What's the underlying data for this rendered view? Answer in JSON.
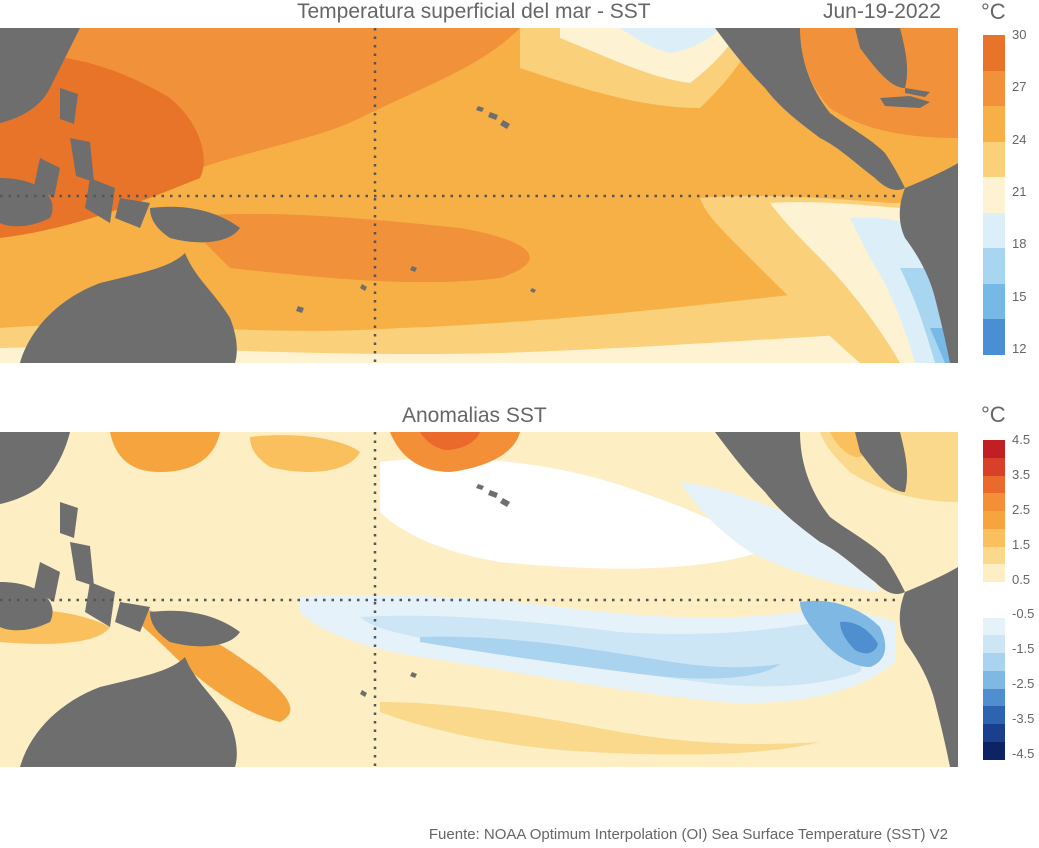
{
  "top": {
    "title": "Temperatura superficial del mar - SST",
    "date": "Jun-19-2022",
    "unit": "°C",
    "colorbar": {
      "colors": [
        "#e8742a",
        "#f1913a",
        "#f7b045",
        "#fbd07a",
        "#fdf2d2",
        "#dceff8",
        "#a8d6f0",
        "#76b9e6",
        "#4a8fd4"
      ],
      "ticks": [
        "30",
        "27",
        "24",
        "21",
        "18",
        "15",
        "12"
      ]
    }
  },
  "bottom": {
    "title": "Anomalias SST",
    "unit": "°C",
    "colorbar": {
      "colors": [
        "#c21f24",
        "#d8402a",
        "#ea6a2c",
        "#f39037",
        "#f6a43d",
        "#f9c05d",
        "#fbd98c",
        "#fdeec4",
        "#ffffff",
        "#ffffff",
        "#e6f2fa",
        "#cce6f5",
        "#a9d3ef",
        "#7fb9e3",
        "#4f8fcf",
        "#2d64b2",
        "#1a3f8c",
        "#0d2464"
      ],
      "ticks": [
        "4.5",
        "3.5",
        "2.5",
        "1.5",
        "0.5",
        "-0.5",
        "-1.5",
        "-2.5",
        "-3.5",
        "-4.5"
      ]
    }
  },
  "source": "Fuente: NOAA Optimum Interpolation (OI) Sea Surface Temperature (SST) V2"
}
